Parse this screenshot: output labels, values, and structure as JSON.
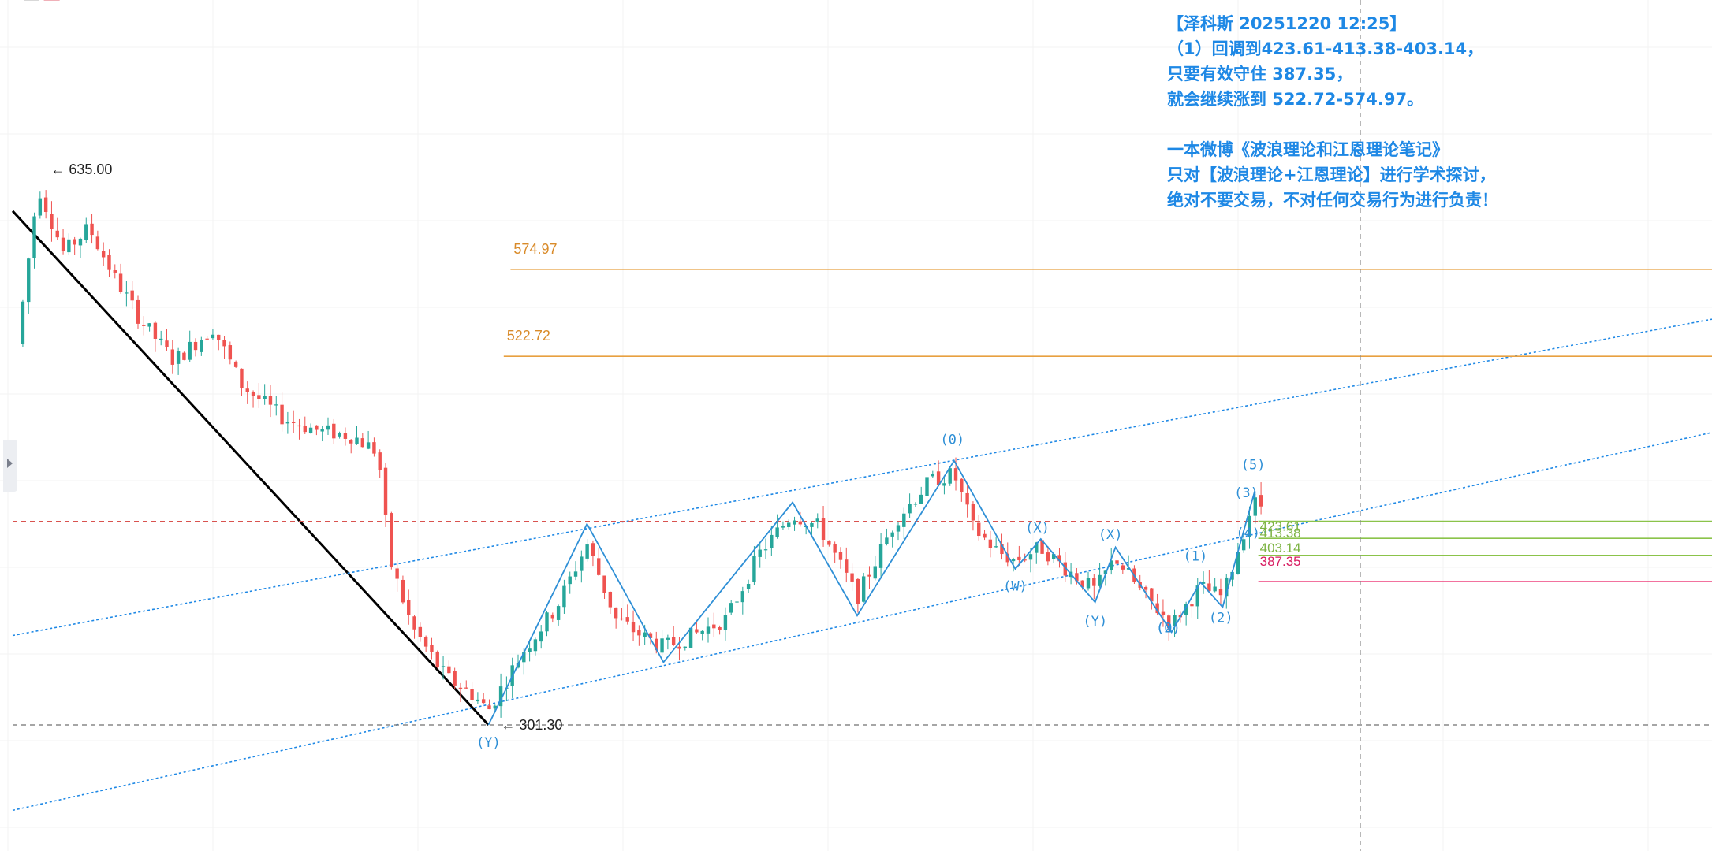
{
  "header_fragment": {
    "left": "—",
    "values": "—"
  },
  "annotation": {
    "lines": [
      "【泽科斯 20251220 12:25】",
      "  （1）回调到423.61-413.38-403.14，",
      "只要有效守住 387.35，",
      "就会继续涨到 522.72-574.97。",
      "",
      "一本微博《波浪理论和江恩理论笔记》",
      "只对【波浪理论+江恩理论】进行学术探讨，",
      "绝对不要交易，不对任何交易行为进行负责！"
    ]
  },
  "colors": {
    "up_candle": "#26a69a",
    "down_candle": "#ef5350",
    "wave_line": "#2e8fd6",
    "wave_label": "#2e8fd6",
    "channel_line": "#1e88e5",
    "target_line": "#e8a040",
    "target_label": "#d98b2a",
    "support_line": "#8bc34a",
    "support_label": "#7cb342",
    "stop_line": "#e91e63",
    "stop_label": "#d81b60",
    "ref_dash": "#d9534f",
    "low_dash": "#707070",
    "trend_line": "#000000"
  },
  "chart_data": {
    "type": "candlestick",
    "price_axis": {
      "approx_range": [
        230,
        680
      ],
      "visible_labels": false
    },
    "extremes": [
      {
        "label": "← 635.00",
        "price": 635.0,
        "bar": 0.015
      },
      {
        "label": "← 301.30",
        "price": 301.3,
        "bar": 0.28
      }
    ],
    "horizontal_levels": [
      {
        "price": 574.97,
        "label": "574.97",
        "role": "target",
        "start": 0.293
      },
      {
        "price": 522.72,
        "label": "522.72",
        "role": "target",
        "start": 0.289
      },
      {
        "price": 423.61,
        "label": "423.61",
        "role": "support",
        "start": 0.733
      },
      {
        "price": 413.38,
        "label": "413.38",
        "role": "support",
        "start": 0.733
      },
      {
        "price": 403.14,
        "label": "403.14",
        "role": "support",
        "start": 0.733
      },
      {
        "price": 387.35,
        "label": "387.35",
        "role": "stop",
        "start": 0.733
      }
    ],
    "reference_dashes": [
      {
        "price": 423.61,
        "role": "ref"
      },
      {
        "price": 301.3,
        "role": "low"
      }
    ],
    "wave_path": [
      {
        "bar": 0.28,
        "price": 301.3
      },
      {
        "bar": 0.338,
        "price": 422
      },
      {
        "bar": 0.383,
        "price": 339
      },
      {
        "bar": 0.459,
        "price": 435
      },
      {
        "bar": 0.497,
        "price": 367
      },
      {
        "bar": 0.554,
        "price": 460
      },
      {
        "bar": 0.59,
        "price": 395
      },
      {
        "bar": 0.605,
        "price": 413
      },
      {
        "bar": 0.637,
        "price": 375
      },
      {
        "bar": 0.649,
        "price": 408
      },
      {
        "bar": 0.682,
        "price": 357
      },
      {
        "bar": 0.699,
        "price": 387
      },
      {
        "bar": 0.712,
        "price": 372
      },
      {
        "bar": 0.731,
        "price": 442
      }
    ],
    "wave_labels": [
      {
        "text": "(Y)",
        "bar": 0.28,
        "price": 288
      },
      {
        "text": "(0)",
        "bar": 0.553,
        "price": 470
      },
      {
        "text": "(X)",
        "bar": 0.603,
        "price": 417
      },
      {
        "text": "(W)",
        "bar": 0.59,
        "price": 382
      },
      {
        "text": "(X)",
        "bar": 0.646,
        "price": 413
      },
      {
        "text": "(Y)",
        "bar": 0.637,
        "price": 361
      },
      {
        "text": "(2)",
        "bar": 0.68,
        "price": 357
      },
      {
        "text": "(0)",
        "bar": 0.68,
        "price": 357
      },
      {
        "text": "(1)",
        "bar": 0.696,
        "price": 400
      },
      {
        "text": "(2)",
        "bar": 0.711,
        "price": 363
      },
      {
        "text": "(3)",
        "bar": 0.726,
        "price": 438
      },
      {
        "text": "(4)",
        "bar": 0.727,
        "price": 414
      },
      {
        "text": "(5)",
        "bar": 0.73,
        "price": 455
      }
    ],
    "trend_lines": [
      {
        "role": "downtrend",
        "from": {
          "bar": 0.0,
          "price": 610
        },
        "to": {
          "bar": 0.28,
          "price": 301.3
        }
      },
      {
        "role": "channel-upper",
        "from": {
          "bar": 0.0,
          "price": 355
        },
        "to": {
          "bar": 1.0,
          "price": 545
        }
      },
      {
        "role": "channel-lower",
        "from": {
          "bar": 0.0,
          "price": 250
        },
        "to": {
          "bar": 1.0,
          "price": 477
        }
      }
    ]
  }
}
